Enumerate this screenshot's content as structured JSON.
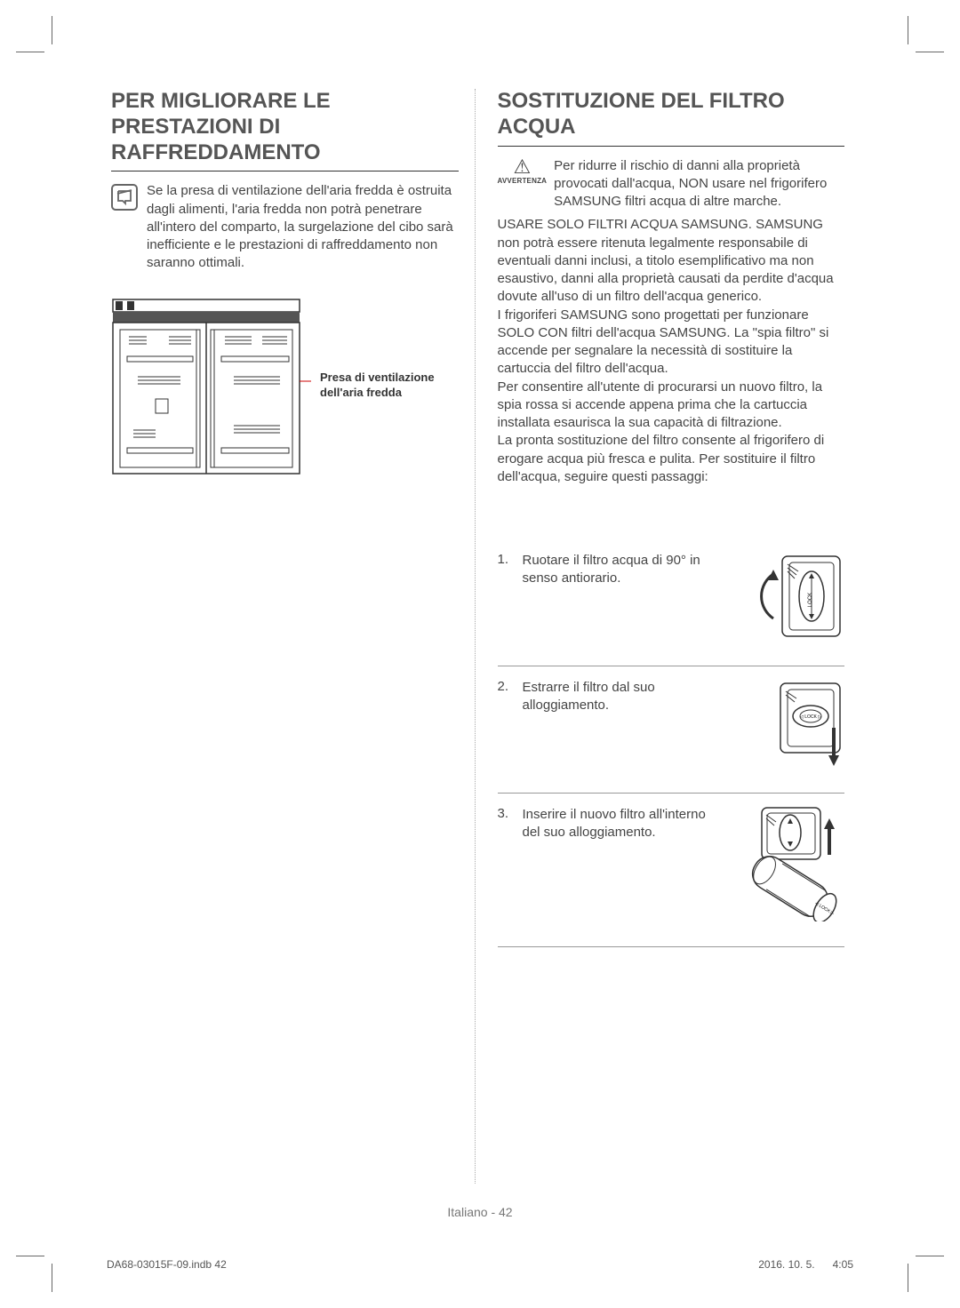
{
  "left": {
    "heading": "PER MIGLIORARE LE PRESTAZIONI DI RAFFREDDAMENTO",
    "note": "Se la presa di ventilazione dell'aria fredda è ostruita dagli alimenti, l'aria fredda non potrà penetrare all'intero del comparto, la surgelazione del cibo sarà inefficiente e le prestazioni di raffreddamento non saranno ottimali.",
    "callout": "Presa di ventilazione dell'aria fredda"
  },
  "right": {
    "heading": "SOSTITUZIONE DEL FILTRO ACQUA",
    "avvertenza_label": "AVVERTENZA",
    "warning": "Per ridurre il rischio di danni alla proprietà provocati dall'acqua, NON usare nel frigorifero SAMSUNG filtri acqua di altre marche.",
    "body": "USARE SOLO FILTRI ACQUA SAMSUNG. SAMSUNG non potrà essere ritenuta legalmente responsabile di eventuali danni inclusi, a titolo esemplificativo ma non esaustivo, danni alla proprietà causati da perdite d'acqua dovute all'uso di un filtro dell'acqua generico.\nI frigoriferi SAMSUNG sono progettati per funzionare SOLO CON filtri dell'acqua SAMSUNG. La \"spia filtro\" si accende per segnalare la necessità di sostituire la cartuccia del filtro dell'acqua.\nPer consentire all'utente di procurarsi un nuovo filtro, la spia rossa si accende appena prima che la cartuccia installata esaurisca la sua capacità di filtrazione.\nLa pronta sostituzione del filtro consente al frigorifero di erogare acqua più fresca e pulita. Per sostituire il filtro dell'acqua, seguire questi passaggi:",
    "steps": [
      {
        "num": "1.",
        "text": "Ruotare il filtro acqua di 90° in senso antiorario."
      },
      {
        "num": "2.",
        "text": "Estrarre il filtro dal suo alloggiamento."
      },
      {
        "num": "3.",
        "text": "Inserire il nuovo filtro all'interno del suo alloggiamento."
      }
    ]
  },
  "footer": {
    "center": "Italiano - 42",
    "left": "DA68-03015F-09.indb   42",
    "right": "2016. 10. 5.      4:05"
  },
  "colors": {
    "heading": "#555555",
    "text": "#444444",
    "rule": "#333333",
    "dotted": "#aaaaaa"
  }
}
